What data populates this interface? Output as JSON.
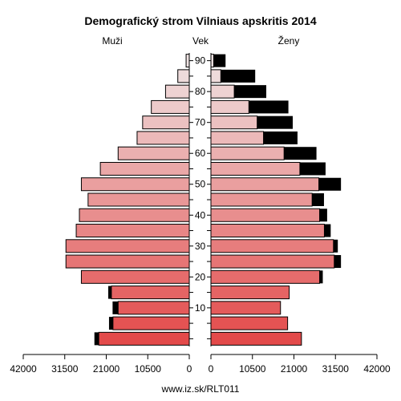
{
  "chart_data": {
    "type": "bar",
    "title": "Demografický strom Vilniaus apskritis 2014",
    "left_label": "Muži",
    "center_label": "Vek",
    "right_label": "Ženy",
    "footer": "www.iz.sk/RLT011",
    "age_groups": [
      "0-4",
      "5-9",
      "10-14",
      "15-19",
      "20-24",
      "25-29",
      "30-34",
      "35-39",
      "40-44",
      "45-49",
      "50-54",
      "55-59",
      "60-64",
      "65-69",
      "70-74",
      "75-79",
      "80-84",
      "85-89",
      "90+"
    ],
    "age_tick_labels": [
      "10",
      "20",
      "30",
      "40",
      "50",
      "60",
      "70",
      "80",
      "90"
    ],
    "age_tick_groups": [
      2,
      4,
      6,
      8,
      10,
      12,
      14,
      16,
      18
    ],
    "x_tick_labels_left": [
      "42000",
      "31500",
      "21000",
      "10500",
      "0"
    ],
    "x_tick_labels_right": [
      "0",
      "10500",
      "21000",
      "31500",
      "42000"
    ],
    "xlim": [
      0,
      42000
    ],
    "series": [
      {
        "name": "Muži",
        "side": "left",
        "values": [
          22900,
          19300,
          18000,
          19700,
          27300,
          31200,
          31200,
          28600,
          27800,
          25600,
          27300,
          22500,
          18000,
          13200,
          11800,
          9600,
          6000,
          2900,
          800
        ],
        "excess": [
          1100,
          1000,
          1400,
          800,
          0,
          0,
          0,
          0,
          0,
          0,
          0,
          0,
          0,
          0,
          0,
          0,
          0,
          0,
          0
        ]
      },
      {
        "name": "Ženy",
        "side": "right",
        "values": [
          22900,
          19400,
          17600,
          19800,
          27500,
          31200,
          31000,
          28700,
          27500,
          25600,
          27300,
          22500,
          18500,
          13300,
          11700,
          9600,
          5900,
          2500,
          700
        ],
        "excess": [
          0,
          0,
          0,
          0,
          800,
          1700,
          1100,
          1600,
          1900,
          3000,
          5600,
          6500,
          8200,
          8600,
          9000,
          10000,
          8100,
          8700,
          3000
        ]
      }
    ],
    "colors": {
      "excess": "#000000",
      "bar_young": "#e34a4a",
      "bar_old": "#efe3e3"
    }
  }
}
